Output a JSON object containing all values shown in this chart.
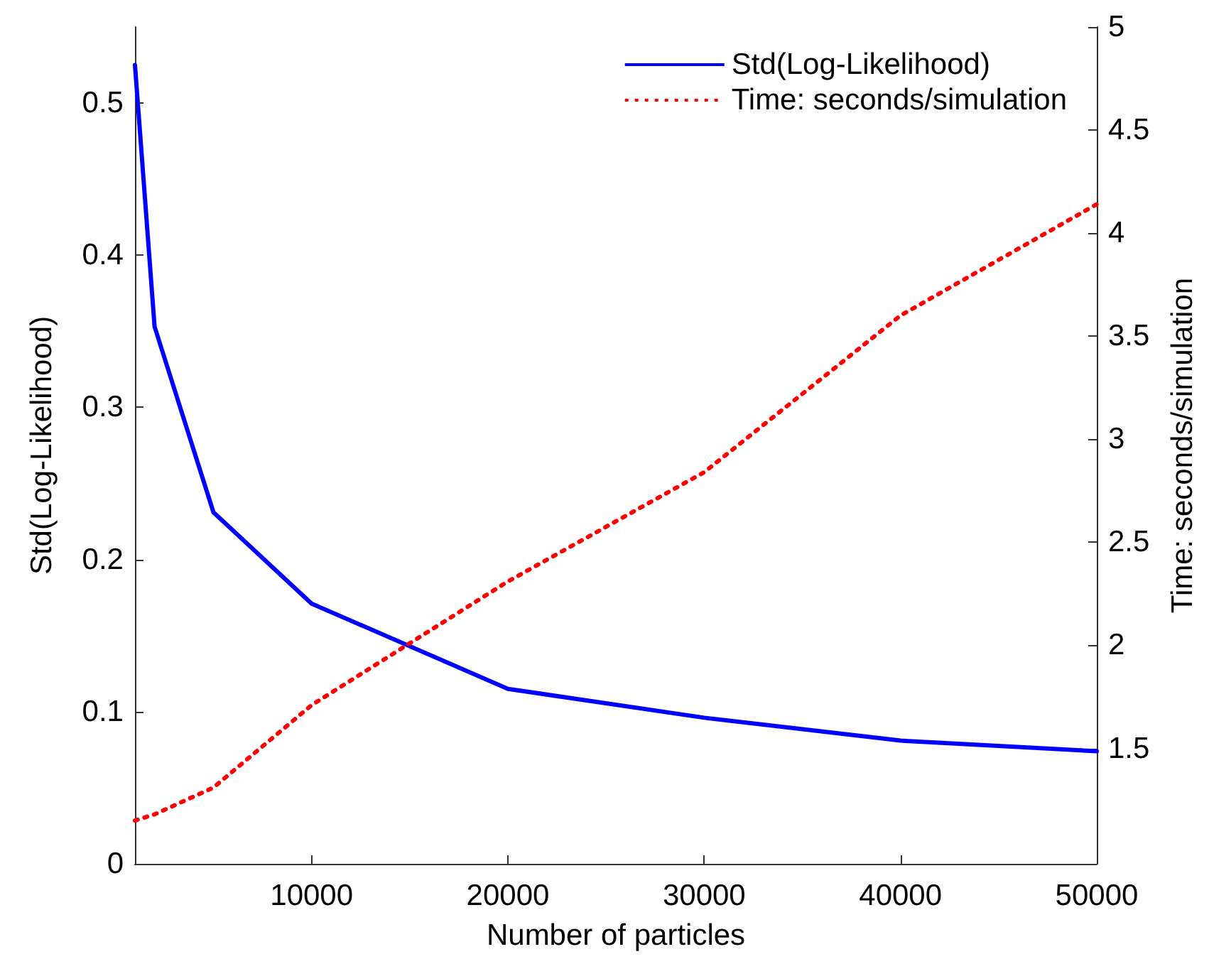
{
  "chart_data": {
    "type": "line",
    "xlabel": "Number of particles",
    "ylabel": "Std(Log-Likelihood)",
    "y2label": "Time: seconds/simulation",
    "x": [
      1000,
      2000,
      5000,
      10000,
      20000,
      30000,
      40000,
      50000
    ],
    "series": [
      {
        "name": "Std(Log-Likelihood)",
        "color": "#0000ff",
        "line_style": "solid",
        "values": [
          0.525,
          0.353,
          0.231,
          0.171,
          0.115,
          0.096,
          0.081,
          0.074
        ]
      },
      {
        "name": "Time: seconds/simulation",
        "color": "#ff0000",
        "line_style": "dotted",
        "axis": "y2",
        "values": [
          1.15,
          1.18,
          1.31,
          1.71,
          2.31,
          2.84,
          3.6,
          4.14
        ]
      }
    ],
    "xlim": [
      1000,
      50000
    ],
    "xticks": [
      10000,
      20000,
      30000,
      40000,
      50000
    ],
    "ylim": [
      0,
      0.55
    ],
    "yticks": [
      0,
      0.1,
      0.2,
      0.3,
      0.4,
      0.5
    ],
    "y2lim": [
      0.94,
      5
    ],
    "y2ticks": [
      1.5,
      2,
      2.5,
      3,
      3.5,
      4,
      4.5,
      5
    ],
    "legend": "top right",
    "grid": false,
    "marker": "none"
  }
}
